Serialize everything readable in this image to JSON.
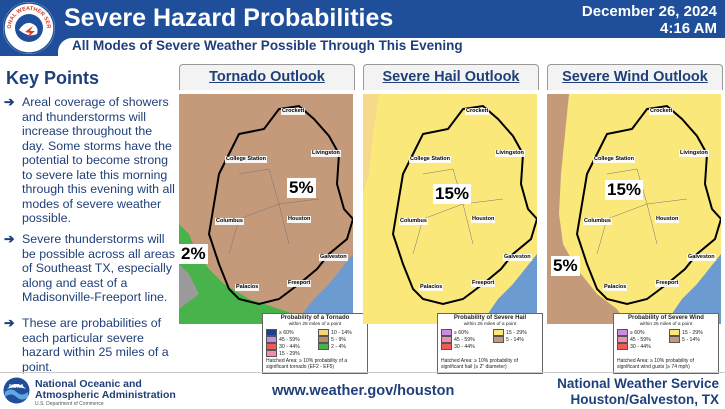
{
  "header": {
    "title": "Severe Hazard Probabilities",
    "date": "December 26, 2024",
    "time": "4:16 AM",
    "subtitle": "All Modes of Severe Weather Possible Through This Evening",
    "logo_text": "NATIONAL WEATHER SERVICE"
  },
  "key_points": {
    "title": "Key Points",
    "items": [
      {
        "text": "Areal coverage of showers and thunderstorms will increase throughout the day. Some storms have the potential to become strong to severe late this morning through this evening with all modes of severe weather possible."
      },
      {
        "text": "Severe thunderstorms will be possible across all areas of Southeast TX, especially along and east of a Madisonville-Freeport line."
      },
      {
        "text": "These are probabilities of each particular severe hazard within 25 miles of a point."
      }
    ]
  },
  "cities": [
    "Crockett",
    "College Station",
    "Livingston",
    "Columbus",
    "Houston",
    "Galveston",
    "Palacios",
    "Freeport"
  ],
  "panels": [
    {
      "title": "Tornado Outlook",
      "labels": [
        "5%",
        "2%"
      ],
      "legend": {
        "title": "Probability of a Tornado",
        "subtitle": "within 25 miles of a point",
        "items": [
          {
            "label": "≥ 60%",
            "color": "#1a3f96"
          },
          {
            "label": "10 - 14%",
            "color": "#f7d37a"
          },
          {
            "label": "45 - 59%",
            "color": "#c88ce0"
          },
          {
            "label": "5 - 9%",
            "color": "#b88b6a"
          },
          {
            "label": "30 - 44%",
            "color": "#f25a5a"
          },
          {
            "label": "2 - 4%",
            "color": "#47b34a"
          },
          {
            "label": "15 - 29%",
            "color": "#f28ab2"
          }
        ],
        "note": "Hatched Area: ≥ 10% probability of a significant tornado (EF2 - EF5)"
      }
    },
    {
      "title": "Severe Hail Outlook",
      "labels": [
        "15%"
      ],
      "legend": {
        "title": "Probability of Severe Hail",
        "subtitle": "within 25 miles of a point",
        "items": [
          {
            "label": "≥ 60%",
            "color": "#c88ce0"
          },
          {
            "label": "15 - 29%",
            "color": "#fbe87a"
          },
          {
            "label": "45 - 59%",
            "color": "#f28ab2"
          },
          {
            "label": "5 - 14%",
            "color": "#c49a7a"
          },
          {
            "label": "30 - 44%",
            "color": "#f25a5a"
          }
        ],
        "note": "Hatched Area: ≥ 10% probability of significant hail (≥ 2\" diameter)"
      }
    },
    {
      "title": "Severe Wind Outlook",
      "labels": [
        "15%",
        "5%"
      ],
      "legend": {
        "title": "Probability of Severe Wind",
        "subtitle": "within 25 miles of a point",
        "items": [
          {
            "label": "≥ 60%",
            "color": "#c88ce0"
          },
          {
            "label": "15 - 29%",
            "color": "#fbe87a"
          },
          {
            "label": "45 - 59%",
            "color": "#f28ab2"
          },
          {
            "label": "5 - 14%",
            "color": "#c49a7a"
          },
          {
            "label": "30 - 44%",
            "color": "#f25a5a"
          }
        ],
        "note": "Hatched Area: ≥ 10% probability of significant wind gusts (≥ 74 mph)"
      }
    }
  ],
  "footer": {
    "noaa_name_line1": "National Oceanic and",
    "noaa_name_line2": "Atmospheric Administration",
    "noaa_dept": "U.S. Department of Commerce",
    "noaa_logo_text": "NOAA",
    "website": "www.weather.gov/houston",
    "office_line1": "National Weather Service",
    "office_line2": "Houston/Galveston, TX"
  },
  "colors": {
    "header_blue": "#1f4f9a",
    "text_navy": "#1f3f7a",
    "tornado_fill": "#c49a7a",
    "tornado_green": "#47b34a",
    "hail_fill": "#fbe87a",
    "water": "#6b9bd1"
  }
}
